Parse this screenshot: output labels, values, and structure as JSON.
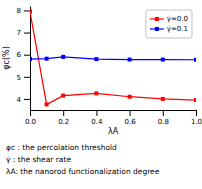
{
  "chart_data": {
    "type": "line",
    "xlabel": "λA",
    "ylabel": "φc(%)",
    "x": [
      0.0,
      0.1,
      0.2,
      0.4,
      0.6,
      0.8,
      1.0
    ],
    "series": [
      {
        "name": "γ̇=0.0",
        "color": "#FF0000",
        "marker": "square",
        "values": [
          7.95,
          3.75,
          4.15,
          4.25,
          4.1,
          4.0,
          3.95
        ]
      },
      {
        "name": "γ̇=0.1",
        "color": "#0000FF",
        "marker": "square",
        "values": [
          5.8,
          5.82,
          5.9,
          5.8,
          5.78,
          5.78,
          5.77
        ]
      }
    ],
    "xlim": [
      0.0,
      1.0
    ],
    "ylim": [
      3.5,
      8.2
    ],
    "xticks": [
      {
        "value": 0.0,
        "label": "0.0"
      },
      0.2,
      0.4,
      0.6,
      0.8,
      {
        "value": 1.0,
        "label": "1.0"
      }
    ],
    "yticks": [
      4,
      5,
      6,
      7,
      8
    ],
    "legend": "upper right",
    "annotations": [
      "φc : the percolation threshold",
      "γ̇ : the shear rate",
      "λA: the nanorod functionalization degree"
    ]
  }
}
